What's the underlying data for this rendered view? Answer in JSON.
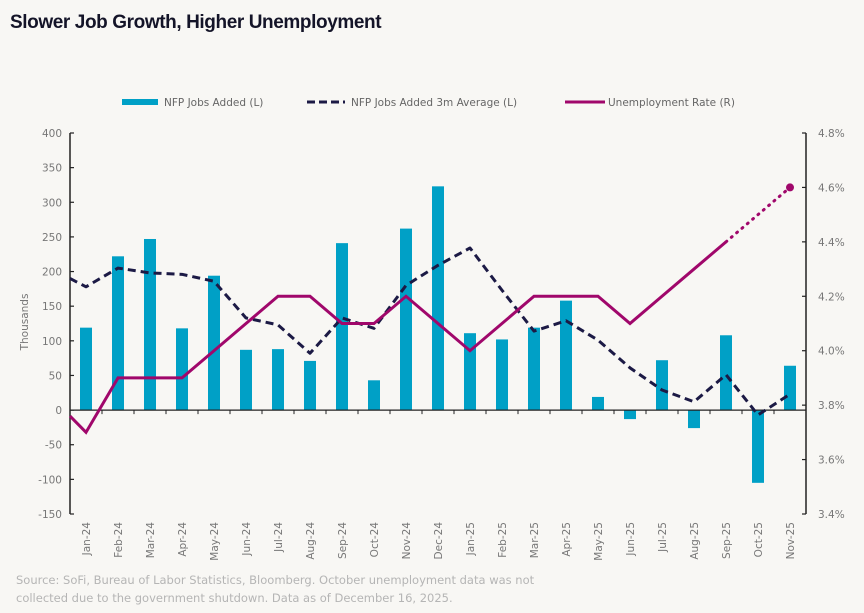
{
  "title": "Slower Job Growth, Higher Unemployment",
  "footer": {
    "line1": "Source: SoFi, Bureau of Labor Statistics,  Bloomberg. October unemployment data was not",
    "line2": "collected due to the government shutdown. Data as of December 16, 2025."
  },
  "chart_data": {
    "type": "bar",
    "title": "Slower Job Growth, Higher Unemployment",
    "xlabel": "",
    "ylabel": "Thousands",
    "y2label": "",
    "categories": [
      "Jan-24",
      "Feb-24",
      "Mar-24",
      "Apr-24",
      "May-24",
      "Jun-24",
      "Jul-24",
      "Aug-24",
      "Sep-24",
      "Oct-24",
      "Nov-24",
      "Dec-24",
      "Jan-25",
      "Feb-25",
      "Mar-25",
      "Apr-25",
      "May-25",
      "Jun-25",
      "Jul-25",
      "Aug-25",
      "Sep-25",
      "Oct-25",
      "Nov-25"
    ],
    "ylim": [
      -150,
      400
    ],
    "yticks": [
      400,
      350,
      300,
      250,
      200,
      150,
      100,
      50,
      0,
      -50,
      -100,
      -150
    ],
    "y2lim": [
      3.4,
      4.8
    ],
    "y2ticks": [
      "4.8%",
      "4.6%",
      "4.4%",
      "4.2%",
      "4.0%",
      "3.8%",
      "3.6%",
      "3.4%"
    ],
    "y2tick_values": [
      4.8,
      4.6,
      4.4,
      4.2,
      4.0,
      3.8,
      3.6,
      3.4
    ],
    "legend_position": "top",
    "grid": false,
    "series": [
      {
        "name": "NFP Jobs Added (L)",
        "type": "bar",
        "axis": "left",
        "color": "#00a0c6",
        "values": [
          119,
          222,
          247,
          118,
          194,
          87,
          88,
          71,
          241,
          43,
          262,
          323,
          111,
          102,
          119,
          158,
          19,
          -13,
          72,
          -26,
          108,
          -105,
          64
        ]
      },
      {
        "name": "NFP Jobs Added 3m Average (L)",
        "type": "line",
        "style": "dashed",
        "axis": "left",
        "color": "#1c1a45",
        "values": [
          178,
          205,
          198,
          196,
          186,
          133,
          123,
          82,
          133,
          118,
          180,
          209,
          234,
          173,
          114,
          129,
          101,
          61,
          29,
          12,
          51,
          -7,
          23
        ]
      },
      {
        "name": "Unemployment Rate (R)",
        "type": "line",
        "axis": "right",
        "color": "#a0076b",
        "values": [
          3.7,
          3.9,
          3.9,
          3.9,
          4.0,
          4.1,
          4.2,
          4.2,
          4.1,
          4.1,
          4.2,
          4.1,
          4.0,
          4.1,
          4.2,
          4.2,
          4.2,
          4.1,
          4.2,
          4.3,
          4.4,
          null,
          4.6
        ],
        "note": "October 2025 not collected; dotted segment connects Sep-25 to Nov-25 with endpoint marker"
      }
    ]
  }
}
